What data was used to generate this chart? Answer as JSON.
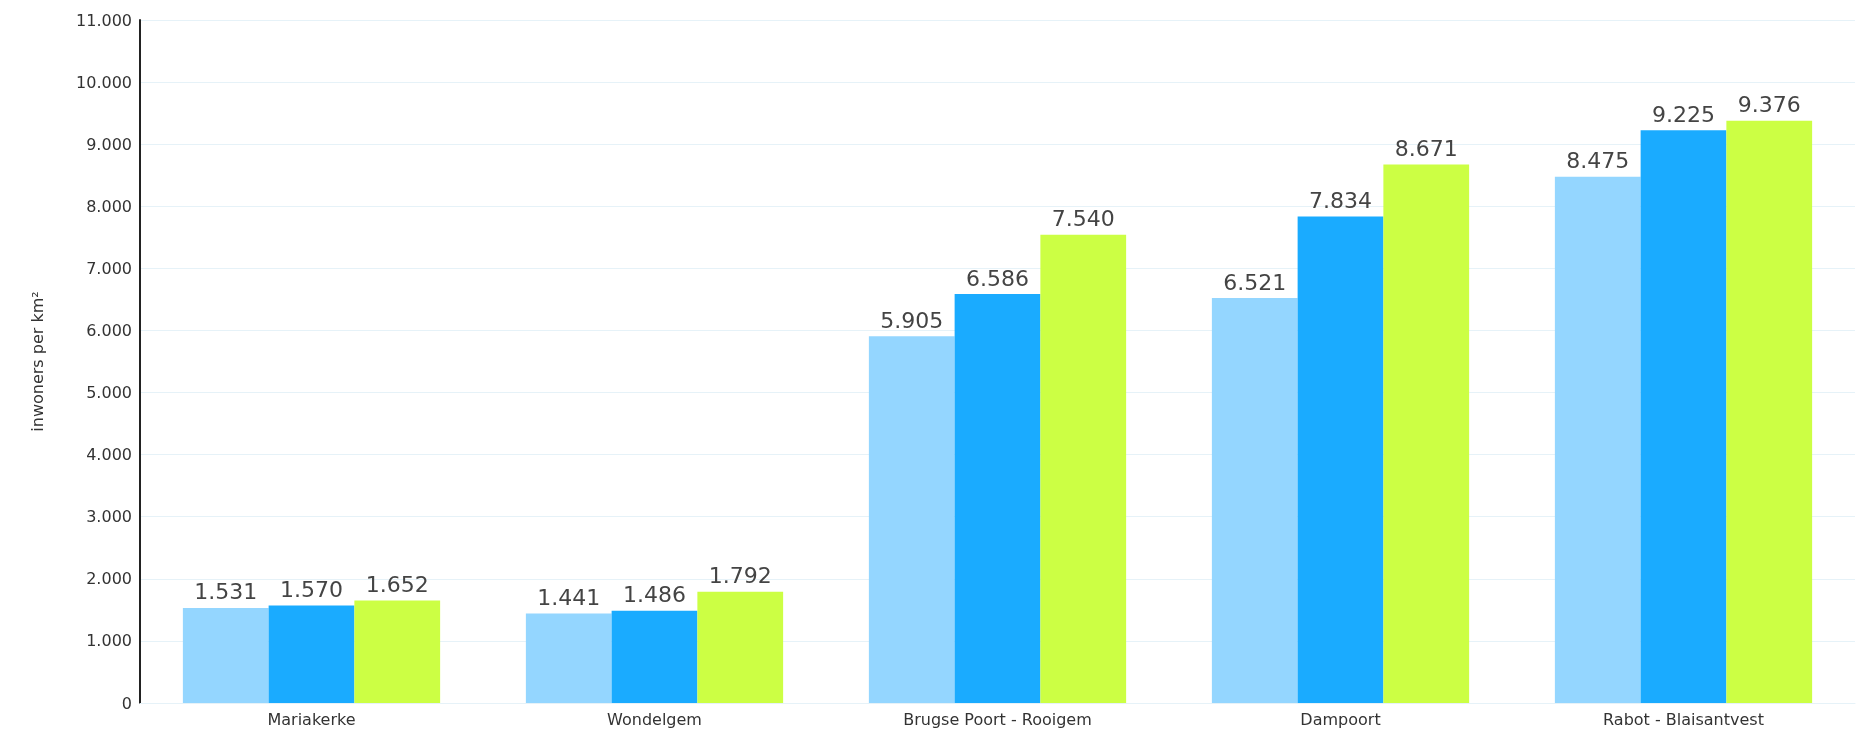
{
  "chart_data": {
    "type": "bar",
    "ylabel": "inwoners per km²",
    "categories": [
      "Mariakerke",
      "Wondelgem",
      "Brugse Poort - Rooigem",
      "Dampoort",
      "Rabot - Blaisantvest"
    ],
    "series": [
      {
        "color": "#94d6ff",
        "values": [
          1531,
          1441,
          5905,
          6521,
          8475
        ],
        "value_labels": [
          "1.531",
          "1.441",
          "5.905",
          "6.521",
          "8.475"
        ]
      },
      {
        "color": "#1aabff",
        "values": [
          1570,
          1486,
          6586,
          7834,
          9225
        ],
        "value_labels": [
          "1.570",
          "1.486",
          "6.586",
          "7.834",
          "9.225"
        ]
      },
      {
        "color": "#ccff44",
        "values": [
          1652,
          1792,
          7540,
          8671,
          9376
        ],
        "value_labels": [
          "1.652",
          "1.792",
          "7.540",
          "8.671",
          "9.376"
        ]
      }
    ],
    "ylim": [
      0,
      11000
    ],
    "yticks": [
      {
        "value": 0,
        "label": "0"
      },
      {
        "value": 1000,
        "label": "1.000"
      },
      {
        "value": 2000,
        "label": "2.000"
      },
      {
        "value": 3000,
        "label": "3.000"
      },
      {
        "value": 4000,
        "label": "4.000"
      },
      {
        "value": 5000,
        "label": "5.000"
      },
      {
        "value": 6000,
        "label": "6.000"
      },
      {
        "value": 7000,
        "label": "7.000"
      },
      {
        "value": 8000,
        "label": "8.000"
      },
      {
        "value": 9000,
        "label": "9.000"
      },
      {
        "value": 10000,
        "label": "10.000"
      },
      {
        "value": 11000,
        "label": "11.000"
      }
    ],
    "grid": "y"
  }
}
